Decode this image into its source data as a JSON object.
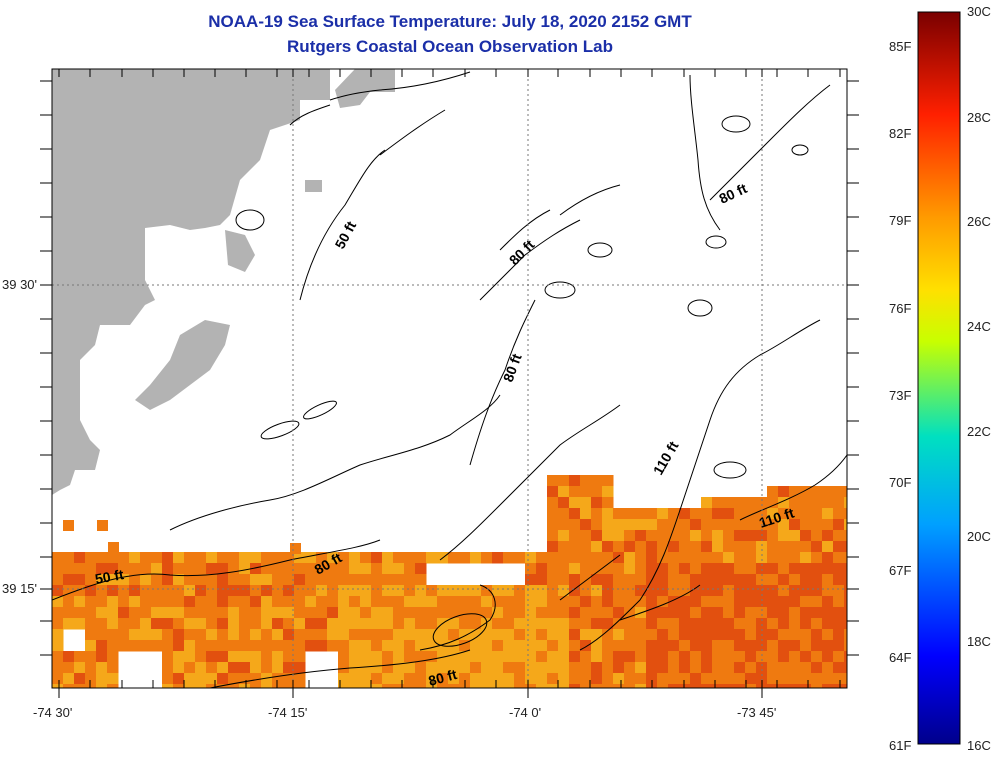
{
  "title_line1": "NOAA-19 Sea Surface Temperature:  July 18, 2020 2152 GMT",
  "title_line2": "Rutgers Coastal Ocean Observation Lab",
  "x_ticks": [
    "-74 30'",
    "-74 15'",
    "-74 0'",
    "-73 45'"
  ],
  "y_ticks": [
    "39 30'",
    "39 15'"
  ],
  "colorbar": {
    "celsius": [
      "30C",
      "28C",
      "26C",
      "24C",
      "22C",
      "20C",
      "18C",
      "16C"
    ],
    "fahrenheit": [
      "85F",
      "82F",
      "79F",
      "76F",
      "73F",
      "70F",
      "67F",
      "64F",
      "61F"
    ]
  },
  "contour_labels": [
    "50 ft",
    "80 ft",
    "80 ft",
    "80 ft",
    "110 ft",
    "110 ft",
    "50 ft",
    "80 ft",
    "80 ft"
  ],
  "colors": {
    "land": "#b3b3b3",
    "title": "#1b2fa8",
    "sst_range": [
      "#ef7a10",
      "#f5a81a",
      "#e2500f"
    ]
  }
}
